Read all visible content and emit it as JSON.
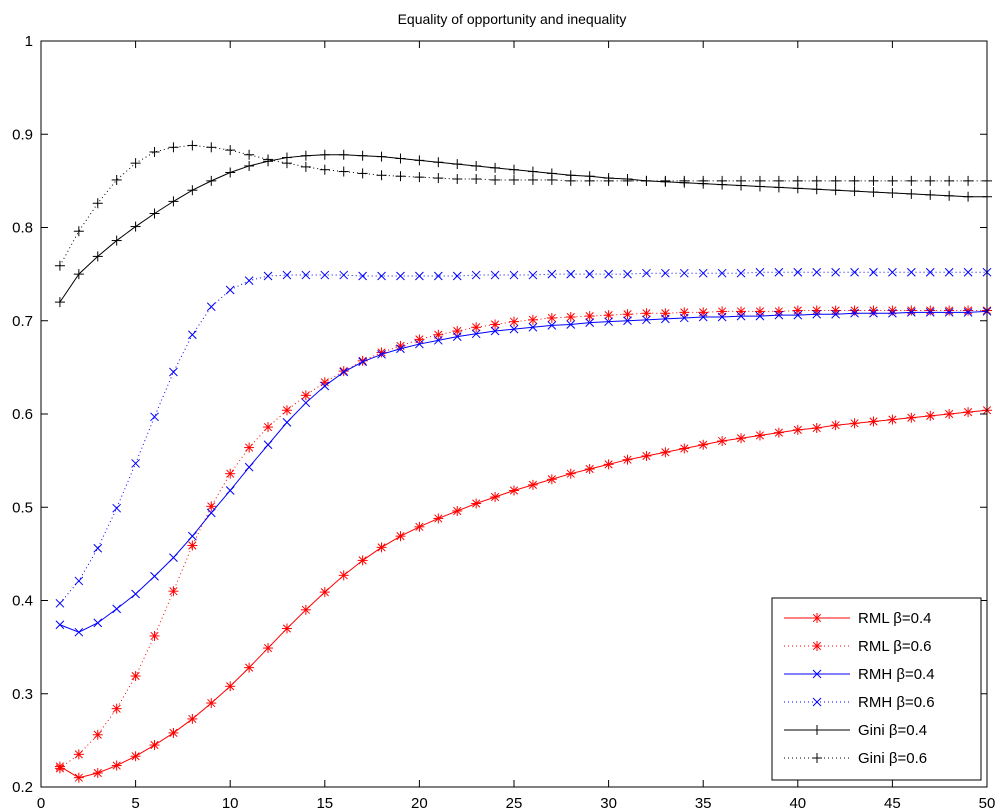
{
  "chart_data": {
    "type": "line",
    "title": "Equality of opportunity and inequality",
    "xlabel": "",
    "ylabel": "",
    "xlim": [
      0,
      50
    ],
    "ylim": [
      0.2,
      1.0
    ],
    "xticks": [
      0,
      5,
      10,
      15,
      20,
      25,
      30,
      35,
      40,
      45,
      50
    ],
    "yticks": [
      0.2,
      0.3,
      0.4,
      0.5,
      0.6,
      0.7,
      0.8,
      0.9,
      1.0
    ],
    "ytick_labels": [
      "0.2",
      "0.3",
      "0.4",
      "0.5",
      "0.6",
      "0.7",
      "0.8",
      "0.9",
      "1"
    ],
    "grid": false,
    "legend_position": "bottom-right",
    "x": [
      1,
      2,
      3,
      4,
      5,
      6,
      7,
      8,
      9,
      10,
      11,
      12,
      13,
      14,
      15,
      16,
      17,
      18,
      19,
      20,
      21,
      22,
      23,
      24,
      25,
      26,
      27,
      28,
      29,
      30,
      31,
      32,
      33,
      34,
      35,
      36,
      37,
      38,
      39,
      40,
      41,
      42,
      43,
      44,
      45,
      46,
      47,
      48,
      49,
      50
    ],
    "series": [
      {
        "name": "RML β=0.4",
        "color": "#ff0000",
        "line_style": "solid",
        "marker": "asterisk",
        "values": [
          0.222,
          0.21,
          0.215,
          0.223,
          0.233,
          0.245,
          0.258,
          0.273,
          0.29,
          0.308,
          0.328,
          0.349,
          0.37,
          0.39,
          0.409,
          0.427,
          0.443,
          0.457,
          0.469,
          0.479,
          0.488,
          0.496,
          0.504,
          0.511,
          0.518,
          0.524,
          0.53,
          0.536,
          0.541,
          0.546,
          0.551,
          0.555,
          0.559,
          0.563,
          0.567,
          0.571,
          0.574,
          0.577,
          0.58,
          0.583,
          0.585,
          0.588,
          0.59,
          0.592,
          0.594,
          0.596,
          0.598,
          0.6,
          0.602,
          0.604
        ]
      },
      {
        "name": "RML β=0.6",
        "color": "#ff0000",
        "line_style": "dotted",
        "marker": "asterisk",
        "values": [
          0.22,
          0.235,
          0.256,
          0.284,
          0.319,
          0.362,
          0.41,
          0.459,
          0.501,
          0.536,
          0.564,
          0.586,
          0.604,
          0.62,
          0.634,
          0.646,
          0.657,
          0.666,
          0.673,
          0.68,
          0.685,
          0.689,
          0.693,
          0.696,
          0.699,
          0.701,
          0.703,
          0.704,
          0.705,
          0.706,
          0.707,
          0.708,
          0.708,
          0.709,
          0.709,
          0.71,
          0.71,
          0.71,
          0.71,
          0.711,
          0.711,
          0.711,
          0.711,
          0.711,
          0.711,
          0.711,
          0.711,
          0.711,
          0.711,
          0.711
        ]
      },
      {
        "name": "RMH β=0.4",
        "color": "#0000ff",
        "line_style": "solid",
        "marker": "x",
        "values": [
          0.374,
          0.366,
          0.376,
          0.391,
          0.407,
          0.426,
          0.446,
          0.469,
          0.494,
          0.518,
          0.543,
          0.567,
          0.591,
          0.612,
          0.63,
          0.645,
          0.656,
          0.664,
          0.67,
          0.675,
          0.679,
          0.683,
          0.686,
          0.689,
          0.691,
          0.693,
          0.695,
          0.696,
          0.698,
          0.699,
          0.7,
          0.701,
          0.702,
          0.703,
          0.704,
          0.704,
          0.705,
          0.705,
          0.706,
          0.706,
          0.707,
          0.707,
          0.708,
          0.708,
          0.708,
          0.709,
          0.709,
          0.709,
          0.709,
          0.71
        ]
      },
      {
        "name": "RMH β=0.6",
        "color": "#0000ff",
        "line_style": "dotted",
        "marker": "x",
        "values": [
          0.397,
          0.421,
          0.456,
          0.499,
          0.547,
          0.597,
          0.645,
          0.685,
          0.715,
          0.733,
          0.743,
          0.748,
          0.749,
          0.749,
          0.749,
          0.749,
          0.748,
          0.748,
          0.748,
          0.748,
          0.748,
          0.748,
          0.749,
          0.749,
          0.749,
          0.749,
          0.75,
          0.75,
          0.75,
          0.75,
          0.75,
          0.751,
          0.751,
          0.751,
          0.751,
          0.751,
          0.751,
          0.752,
          0.752,
          0.752,
          0.752,
          0.752,
          0.752,
          0.752,
          0.752,
          0.752,
          0.752,
          0.752,
          0.752,
          0.752
        ]
      },
      {
        "name": "Gini β=0.4",
        "color": "#000000",
        "line_style": "solid",
        "marker": "plus",
        "values": [
          0.72,
          0.75,
          0.769,
          0.786,
          0.801,
          0.815,
          0.828,
          0.84,
          0.85,
          0.859,
          0.866,
          0.871,
          0.875,
          0.877,
          0.878,
          0.878,
          0.877,
          0.876,
          0.874,
          0.872,
          0.87,
          0.868,
          0.866,
          0.864,
          0.862,
          0.86,
          0.858,
          0.856,
          0.855,
          0.853,
          0.852,
          0.85,
          0.849,
          0.848,
          0.847,
          0.846,
          0.845,
          0.844,
          0.843,
          0.842,
          0.841,
          0.84,
          0.839,
          0.838,
          0.837,
          0.836,
          0.835,
          0.834,
          0.833,
          0.833
        ]
      },
      {
        "name": "Gini β=0.6",
        "color": "#000000",
        "line_style": "dotted",
        "marker": "plus",
        "values": [
          0.759,
          0.796,
          0.826,
          0.851,
          0.869,
          0.881,
          0.886,
          0.888,
          0.886,
          0.883,
          0.878,
          0.873,
          0.869,
          0.865,
          0.862,
          0.86,
          0.858,
          0.856,
          0.855,
          0.854,
          0.853,
          0.852,
          0.852,
          0.851,
          0.851,
          0.851,
          0.851,
          0.85,
          0.85,
          0.85,
          0.85,
          0.85,
          0.85,
          0.85,
          0.85,
          0.85,
          0.85,
          0.85,
          0.85,
          0.85,
          0.85,
          0.85,
          0.85,
          0.85,
          0.85,
          0.85,
          0.85,
          0.85,
          0.85,
          0.85
        ]
      }
    ]
  }
}
